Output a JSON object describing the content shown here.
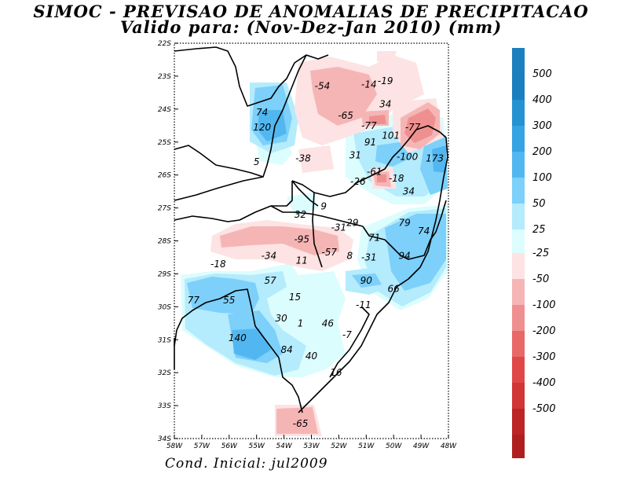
{
  "title_line1": "SIMOC - PREVISAO DE ANOMALIAS DE PRECIPITACAO",
  "title_line2": "Valido para: (Nov-Dez-Jan 2010) (mm)",
  "footer": "Cond. Inicial: jul2009",
  "map": {
    "lon_range": [
      -58,
      -48
    ],
    "lat_range": [
      -34,
      -22
    ],
    "lon_ticks": [
      "58W",
      "57W",
      "56W",
      "55W",
      "54W",
      "53W",
      "52W",
      "51W",
      "50W",
      "49W",
      "48W"
    ],
    "lat_ticks": [
      "22S",
      "23S",
      "24S",
      "25S",
      "26S",
      "27S",
      "28S",
      "29S",
      "30S",
      "31S",
      "32S",
      "33S",
      "34S"
    ],
    "colorbar": {
      "positive": [
        {
          "label": "500",
          "color": "#1b7fbf"
        },
        {
          "label": "400",
          "color": "#2592d2"
        },
        {
          "label": "300",
          "color": "#36a3e3"
        },
        {
          "label": "200",
          "color": "#52b7f0"
        },
        {
          "label": "100",
          "color": "#7cd0fa"
        },
        {
          "label": "50",
          "color": "#b4ebfd"
        },
        {
          "label": "25",
          "color": "#dcfdfd"
        }
      ],
      "negative": [
        {
          "label": "-25",
          "color": "#fde3e3"
        },
        {
          "label": "-50",
          "color": "#f6b5b5"
        },
        {
          "label": "-100",
          "color": "#ef9090"
        },
        {
          "label": "-200",
          "color": "#e96868"
        },
        {
          "label": "-300",
          "color": "#e04848"
        },
        {
          "label": "-400",
          "color": "#d23535"
        },
        {
          "label": "-500",
          "color": "#bd2424"
        }
      ],
      "pos_top_color": "#1d7fbe",
      "neg_bottom_color": "#b01f1f"
    },
    "value_labels": [
      {
        "text": "-54",
        "lon": -52.6,
        "lat": -23.3
      },
      {
        "text": "-14",
        "lon": -50.9,
        "lat": -23.25
      },
      {
        "text": "-19",
        "lon": -50.3,
        "lat": -23.15
      },
      {
        "text": "34",
        "lon": -50.3,
        "lat": -23.85
      },
      {
        "text": "74",
        "lon": -54.8,
        "lat": -24.1
      },
      {
        "text": "-65",
        "lon": -51.75,
        "lat": -24.2
      },
      {
        "text": "120",
        "lon": -54.8,
        "lat": -24.55
      },
      {
        "text": "-77",
        "lon": -50.9,
        "lat": -24.5
      },
      {
        "text": "-77",
        "lon": -49.3,
        "lat": -24.55
      },
      {
        "text": "101",
        "lon": -50.1,
        "lat": -24.8
      },
      {
        "text": "91",
        "lon": -50.85,
        "lat": -25.0
      },
      {
        "text": "31",
        "lon": -51.4,
        "lat": -25.4
      },
      {
        "text": "-100",
        "lon": -49.5,
        "lat": -25.45
      },
      {
        "text": "173",
        "lon": -48.5,
        "lat": -25.5
      },
      {
        "text": "5",
        "lon": -55.0,
        "lat": -25.6
      },
      {
        "text": "-38",
        "lon": -53.3,
        "lat": -25.5
      },
      {
        "text": "-61",
        "lon": -50.7,
        "lat": -25.9
      },
      {
        "text": "-18",
        "lon": -49.9,
        "lat": -26.1
      },
      {
        "text": "-26",
        "lon": -51.3,
        "lat": -26.2
      },
      {
        "text": "34",
        "lon": -49.45,
        "lat": -26.5
      },
      {
        "text": "9",
        "lon": -52.55,
        "lat": -26.95
      },
      {
        "text": "32",
        "lon": -53.4,
        "lat": -27.2
      },
      {
        "text": "29",
        "lon": -51.5,
        "lat": -27.45
      },
      {
        "text": "-31",
        "lon": -52.0,
        "lat": -27.6
      },
      {
        "text": "79",
        "lon": -49.6,
        "lat": -27.45
      },
      {
        "text": "74",
        "lon": -48.9,
        "lat": -27.7
      },
      {
        "text": "71",
        "lon": -50.7,
        "lat": -27.9
      },
      {
        "text": "-95",
        "lon": -53.35,
        "lat": -27.95
      },
      {
        "text": "-34",
        "lon": -54.55,
        "lat": -28.45
      },
      {
        "text": "-57",
        "lon": -52.35,
        "lat": -28.35
      },
      {
        "text": "8",
        "lon": -51.6,
        "lat": -28.45
      },
      {
        "text": "-31",
        "lon": -50.9,
        "lat": -28.5
      },
      {
        "text": "94",
        "lon": -49.6,
        "lat": -28.45
      },
      {
        "text": "11",
        "lon": -53.35,
        "lat": -28.6
      },
      {
        "text": "-18",
        "lon": -56.4,
        "lat": -28.7
      },
      {
        "text": "57",
        "lon": -54.5,
        "lat": -29.2
      },
      {
        "text": "90",
        "lon": -51.0,
        "lat": -29.2
      },
      {
        "text": "66",
        "lon": -50.0,
        "lat": -29.45
      },
      {
        "text": "15",
        "lon": -53.6,
        "lat": -29.7
      },
      {
        "text": "77",
        "lon": -57.3,
        "lat": -29.8
      },
      {
        "text": "55",
        "lon": -56.0,
        "lat": -29.8
      },
      {
        "text": "-11",
        "lon": -51.1,
        "lat": -29.95
      },
      {
        "text": "30",
        "lon": -54.1,
        "lat": -30.35
      },
      {
        "text": "1",
        "lon": -53.4,
        "lat": -30.5
      },
      {
        "text": "46",
        "lon": -52.4,
        "lat": -30.5
      },
      {
        "text": "-7",
        "lon": -51.7,
        "lat": -30.85
      },
      {
        "text": "140",
        "lon": -55.7,
        "lat": -30.95
      },
      {
        "text": "84",
        "lon": -53.9,
        "lat": -31.3
      },
      {
        "text": "40",
        "lon": -53.0,
        "lat": -31.5
      },
      {
        "text": "16",
        "lon": -52.1,
        "lat": -32.0
      },
      {
        "text": "-65",
        "lon": -53.4,
        "lat": -33.55
      }
    ]
  }
}
